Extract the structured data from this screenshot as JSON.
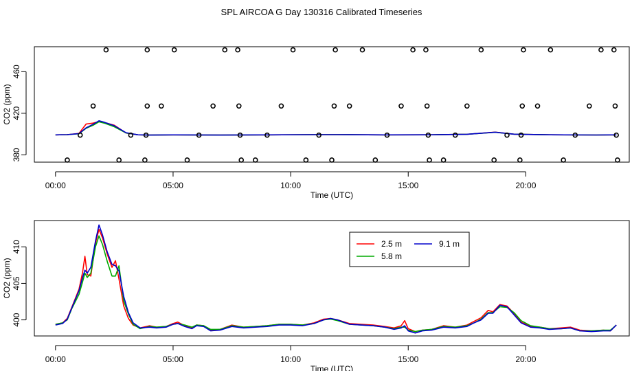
{
  "title": "SPL AIRCOA G  Day 130316  Calibrated Timeseries",
  "chart_data": [
    {
      "type": "scatter",
      "title": "",
      "xlabel": "Time (UTC)",
      "ylabel": "CO2 (ppm)",
      "xlim": [
        -0.9,
        24.4
      ],
      "ylim": [
        373,
        484
      ],
      "xticks": [
        0,
        5,
        10,
        15,
        20
      ],
      "xtick_labels": [
        "00:00",
        "05:00",
        "10:00",
        "15:00",
        "20:00"
      ],
      "yticks": [
        380,
        420,
        460
      ],
      "ytick_labels": [
        "380",
        "420",
        "460"
      ],
      "points": [
        {
          "x": 0.5,
          "y": 375
        },
        {
          "x": 1.05,
          "y": 399
        },
        {
          "x": 1.6,
          "y": 427
        },
        {
          "x": 2.15,
          "y": 481
        },
        {
          "x": 2.7,
          "y": 375
        },
        {
          "x": 3.2,
          "y": 399
        },
        {
          "x": 3.8,
          "y": 375
        },
        {
          "x": 3.85,
          "y": 399
        },
        {
          "x": 3.9,
          "y": 427
        },
        {
          "x": 3.9,
          "y": 481
        },
        {
          "x": 4.5,
          "y": 427
        },
        {
          "x": 5.05,
          "y": 481
        },
        {
          "x": 5.6,
          "y": 375
        },
        {
          "x": 6.1,
          "y": 399
        },
        {
          "x": 6.7,
          "y": 427
        },
        {
          "x": 7.2,
          "y": 481
        },
        {
          "x": 7.75,
          "y": 481
        },
        {
          "x": 7.8,
          "y": 427
        },
        {
          "x": 7.85,
          "y": 399
        },
        {
          "x": 7.9,
          "y": 375
        },
        {
          "x": 8.5,
          "y": 375
        },
        {
          "x": 9.0,
          "y": 399
        },
        {
          "x": 9.6,
          "y": 427
        },
        {
          "x": 10.1,
          "y": 481
        },
        {
          "x": 10.65,
          "y": 375
        },
        {
          "x": 11.2,
          "y": 399
        },
        {
          "x": 11.75,
          "y": 375
        },
        {
          "x": 11.85,
          "y": 427
        },
        {
          "x": 11.9,
          "y": 481
        },
        {
          "x": 12.5,
          "y": 427
        },
        {
          "x": 13.05,
          "y": 481
        },
        {
          "x": 13.6,
          "y": 375
        },
        {
          "x": 14.1,
          "y": 399
        },
        {
          "x": 14.7,
          "y": 427
        },
        {
          "x": 15.2,
          "y": 481
        },
        {
          "x": 15.75,
          "y": 481
        },
        {
          "x": 15.8,
          "y": 427
        },
        {
          "x": 15.85,
          "y": 399
        },
        {
          "x": 15.9,
          "y": 375
        },
        {
          "x": 16.5,
          "y": 375
        },
        {
          "x": 17.0,
          "y": 399
        },
        {
          "x": 17.5,
          "y": 427
        },
        {
          "x": 18.1,
          "y": 481
        },
        {
          "x": 18.65,
          "y": 375
        },
        {
          "x": 19.2,
          "y": 399
        },
        {
          "x": 19.75,
          "y": 375
        },
        {
          "x": 19.8,
          "y": 399
        },
        {
          "x": 19.85,
          "y": 427
        },
        {
          "x": 19.9,
          "y": 481
        },
        {
          "x": 20.5,
          "y": 427
        },
        {
          "x": 21.05,
          "y": 481
        },
        {
          "x": 21.6,
          "y": 375
        },
        {
          "x": 22.1,
          "y": 399
        },
        {
          "x": 22.7,
          "y": 427
        },
        {
          "x": 23.2,
          "y": 481
        },
        {
          "x": 23.75,
          "y": 481
        },
        {
          "x": 23.8,
          "y": 427
        },
        {
          "x": 23.85,
          "y": 399
        },
        {
          "x": 23.9,
          "y": 375
        }
      ],
      "series": [
        {
          "name": "2.5 m",
          "color": "#ff0000",
          "x": [
            0,
            0.5,
            1.0,
            1.3,
            1.6,
            1.85,
            2.1,
            2.5,
            3.0,
            3.5,
            4.0,
            5.0,
            7.0,
            9.0,
            11.0,
            12.0,
            14.0,
            16.0,
            17.5,
            18.7,
            19.5,
            21.0,
            23.0,
            23.85
          ],
          "y": [
            399.2,
            399.4,
            400.6,
            409.6,
            410.5,
            412.0,
            411.0,
            408.5,
            401.0,
            399.3,
            399.0,
            399.2,
            399.0,
            399.2,
            399.4,
            399.4,
            399.2,
            399.3,
            399.8,
            401.9,
            399.9,
            399.3,
            399.1,
            399.2
          ]
        },
        {
          "name": "5.8 m",
          "color": "#00aa00",
          "x": [
            0,
            0.5,
            1.0,
            1.3,
            1.6,
            1.85,
            2.1,
            2.5,
            3.0,
            3.5,
            4.0,
            5.0,
            7.0,
            9.0,
            11.0,
            12.0,
            14.0,
            16.0,
            17.5,
            18.7,
            19.5,
            21.0,
            23.0,
            23.85
          ],
          "y": [
            399.2,
            399.4,
            400.3,
            405.5,
            408.5,
            411.8,
            410.3,
            407.0,
            401.0,
            399.3,
            399.0,
            399.2,
            399.0,
            399.2,
            399.4,
            399.4,
            399.2,
            399.3,
            399.8,
            401.7,
            399.9,
            399.3,
            399.1,
            399.2
          ]
        },
        {
          "name": "9.1 m",
          "color": "#0000cc",
          "x": [
            0,
            0.5,
            1.0,
            1.3,
            1.6,
            1.85,
            2.1,
            2.5,
            3.0,
            3.5,
            4.0,
            5.0,
            7.0,
            9.0,
            11.0,
            12.0,
            14.0,
            16.0,
            17.5,
            18.7,
            19.5,
            21.0,
            23.0,
            23.85
          ],
          "y": [
            399.2,
            399.4,
            400.5,
            406.0,
            409.5,
            412.8,
            411.2,
            408.0,
            401.3,
            399.3,
            399.0,
            399.2,
            399.0,
            399.2,
            399.4,
            399.4,
            399.2,
            399.3,
            399.8,
            401.8,
            399.9,
            399.3,
            399.1,
            399.2
          ]
        }
      ]
    },
    {
      "type": "line",
      "title": "",
      "xlabel": "Time (UTC)",
      "ylabel": "CO2 (ppm)",
      "xlim": [
        -0.9,
        24.4
      ],
      "ylim": [
        397.8,
        413.6
      ],
      "xticks": [
        0,
        5,
        10,
        15,
        20
      ],
      "xtick_labels": [
        "00:00",
        "05:00",
        "10:00",
        "15:00",
        "20:00"
      ],
      "yticks": [
        400,
        405,
        410
      ],
      "ytick_labels": [
        "400",
        "405",
        "410"
      ],
      "legend_position": "top-center",
      "series": [
        {
          "name": "2.5 m",
          "color": "#ff0000",
          "x": [
            0,
            0.3,
            0.5,
            0.7,
            1.0,
            1.15,
            1.25,
            1.35,
            1.5,
            1.7,
            1.85,
            2.0,
            2.2,
            2.4,
            2.55,
            2.7,
            2.9,
            3.1,
            3.3,
            3.6,
            4.0,
            4.3,
            4.7,
            5.0,
            5.2,
            5.5,
            5.8,
            6.0,
            6.3,
            6.6,
            7.0,
            7.5,
            8.0,
            8.5,
            9.0,
            9.5,
            10.0,
            10.5,
            11.0,
            11.4,
            11.7,
            12.0,
            12.5,
            13.0,
            13.5,
            14.0,
            14.4,
            14.7,
            14.85,
            15.0,
            15.3,
            15.6,
            16.0,
            16.5,
            17.0,
            17.5,
            17.8,
            18.1,
            18.4,
            18.6,
            18.9,
            19.2,
            19.5,
            19.8,
            20.2,
            20.6,
            21.0,
            21.5,
            21.9,
            22.3,
            22.8,
            23.3,
            23.6,
            23.85
          ],
          "y": [
            399.4,
            399.6,
            400.2,
            401.8,
            404.2,
            406.5,
            408.7,
            406.2,
            406.0,
            410.5,
            412.4,
            411.2,
            409.0,
            407.2,
            408.1,
            405.6,
            401.9,
            400.2,
            399.3,
            398.9,
            399.2,
            399.0,
            399.1,
            399.5,
            399.7,
            399.2,
            398.9,
            399.3,
            399.2,
            398.6,
            398.7,
            399.3,
            399.0,
            399.1,
            399.2,
            399.4,
            399.4,
            399.3,
            399.6,
            400.1,
            400.2,
            400.0,
            399.5,
            399.4,
            399.3,
            399.1,
            398.9,
            399.2,
            399.9,
            398.8,
            398.4,
            398.6,
            398.7,
            399.2,
            399.0,
            399.3,
            399.8,
            400.3,
            401.3,
            401.1,
            402.1,
            401.9,
            400.9,
            399.7,
            399.1,
            399.0,
            398.8,
            398.9,
            399.0,
            398.6,
            398.5,
            398.6,
            398.5,
            399.3
          ]
        },
        {
          "name": "5.8 m",
          "color": "#00aa00",
          "x": [
            0,
            0.3,
            0.5,
            0.7,
            1.0,
            1.15,
            1.25,
            1.35,
            1.5,
            1.7,
            1.85,
            2.0,
            2.2,
            2.4,
            2.55,
            2.7,
            2.9,
            3.1,
            3.3,
            3.6,
            4.0,
            4.3,
            4.7,
            5.0,
            5.2,
            5.5,
            5.8,
            6.0,
            6.3,
            6.6,
            7.0,
            7.5,
            8.0,
            8.5,
            9.0,
            9.5,
            10.0,
            10.5,
            11.0,
            11.4,
            11.7,
            12.0,
            12.5,
            13.0,
            13.5,
            14.0,
            14.4,
            14.7,
            14.85,
            15.0,
            15.3,
            15.6,
            16.0,
            16.5,
            17.0,
            17.5,
            17.8,
            18.1,
            18.4,
            18.6,
            18.9,
            19.2,
            19.5,
            19.8,
            20.2,
            20.6,
            21.0,
            21.5,
            21.9,
            22.3,
            22.8,
            23.3,
            23.6,
            23.85
          ],
          "y": [
            399.4,
            399.6,
            400.0,
            401.6,
            403.5,
            405.2,
            406.4,
            405.8,
            406.4,
            410.0,
            411.5,
            410.3,
            408.0,
            406.0,
            406.0,
            407.4,
            402.6,
            400.8,
            399.4,
            398.8,
            399.1,
            399.0,
            399.1,
            399.4,
            399.5,
            399.3,
            399.0,
            399.3,
            399.2,
            398.7,
            398.7,
            399.2,
            399.0,
            399.1,
            399.2,
            399.4,
            399.4,
            399.3,
            399.5,
            400.0,
            400.1,
            399.9,
            399.4,
            399.3,
            399.2,
            399.0,
            398.8,
            399.0,
            399.0,
            398.6,
            398.4,
            398.6,
            398.7,
            399.1,
            399.0,
            399.2,
            399.6,
            400.1,
            401.0,
            401.0,
            401.8,
            401.7,
            401.0,
            399.9,
            399.2,
            399.0,
            398.8,
            398.8,
            398.9,
            398.5,
            398.5,
            398.6,
            398.6,
            399.3
          ]
        },
        {
          "name": "9.1 m",
          "color": "#0000cc",
          "x": [
            0,
            0.3,
            0.5,
            0.7,
            1.0,
            1.15,
            1.25,
            1.35,
            1.5,
            1.7,
            1.85,
            2.0,
            2.2,
            2.4,
            2.55,
            2.7,
            2.9,
            3.1,
            3.3,
            3.6,
            4.0,
            4.3,
            4.7,
            5.0,
            5.2,
            5.5,
            5.8,
            6.0,
            6.3,
            6.6,
            7.0,
            7.5,
            8.0,
            8.5,
            9.0,
            9.5,
            10.0,
            10.5,
            11.0,
            11.4,
            11.7,
            12.0,
            12.5,
            13.0,
            13.5,
            14.0,
            14.4,
            14.7,
            14.85,
            15.0,
            15.3,
            15.6,
            16.0,
            16.5,
            17.0,
            17.5,
            17.8,
            18.1,
            18.4,
            18.6,
            18.9,
            19.2,
            19.5,
            19.8,
            20.2,
            20.6,
            21.0,
            21.5,
            21.9,
            22.3,
            22.8,
            23.3,
            23.6,
            23.85
          ],
          "y": [
            399.3,
            399.5,
            400.1,
            401.7,
            404.0,
            405.8,
            406.8,
            406.4,
            407.2,
            410.8,
            413.0,
            411.6,
            409.3,
            407.6,
            407.4,
            406.7,
            403.2,
            401.0,
            399.6,
            398.9,
            399.0,
            398.9,
            399.0,
            399.4,
            399.5,
            399.1,
            398.8,
            399.2,
            399.1,
            398.5,
            398.6,
            399.1,
            398.9,
            399.0,
            399.1,
            399.3,
            399.3,
            399.2,
            399.5,
            400.0,
            400.2,
            400.0,
            399.4,
            399.3,
            399.2,
            399.0,
            398.7,
            398.9,
            399.2,
            398.5,
            398.2,
            398.5,
            398.6,
            399.0,
            398.9,
            399.1,
            399.6,
            400.0,
            400.9,
            400.9,
            402.0,
            401.8,
            400.7,
            399.6,
            399.0,
            398.9,
            398.7,
            398.8,
            398.9,
            398.5,
            398.4,
            398.5,
            398.5,
            399.3
          ]
        }
      ]
    }
  ]
}
